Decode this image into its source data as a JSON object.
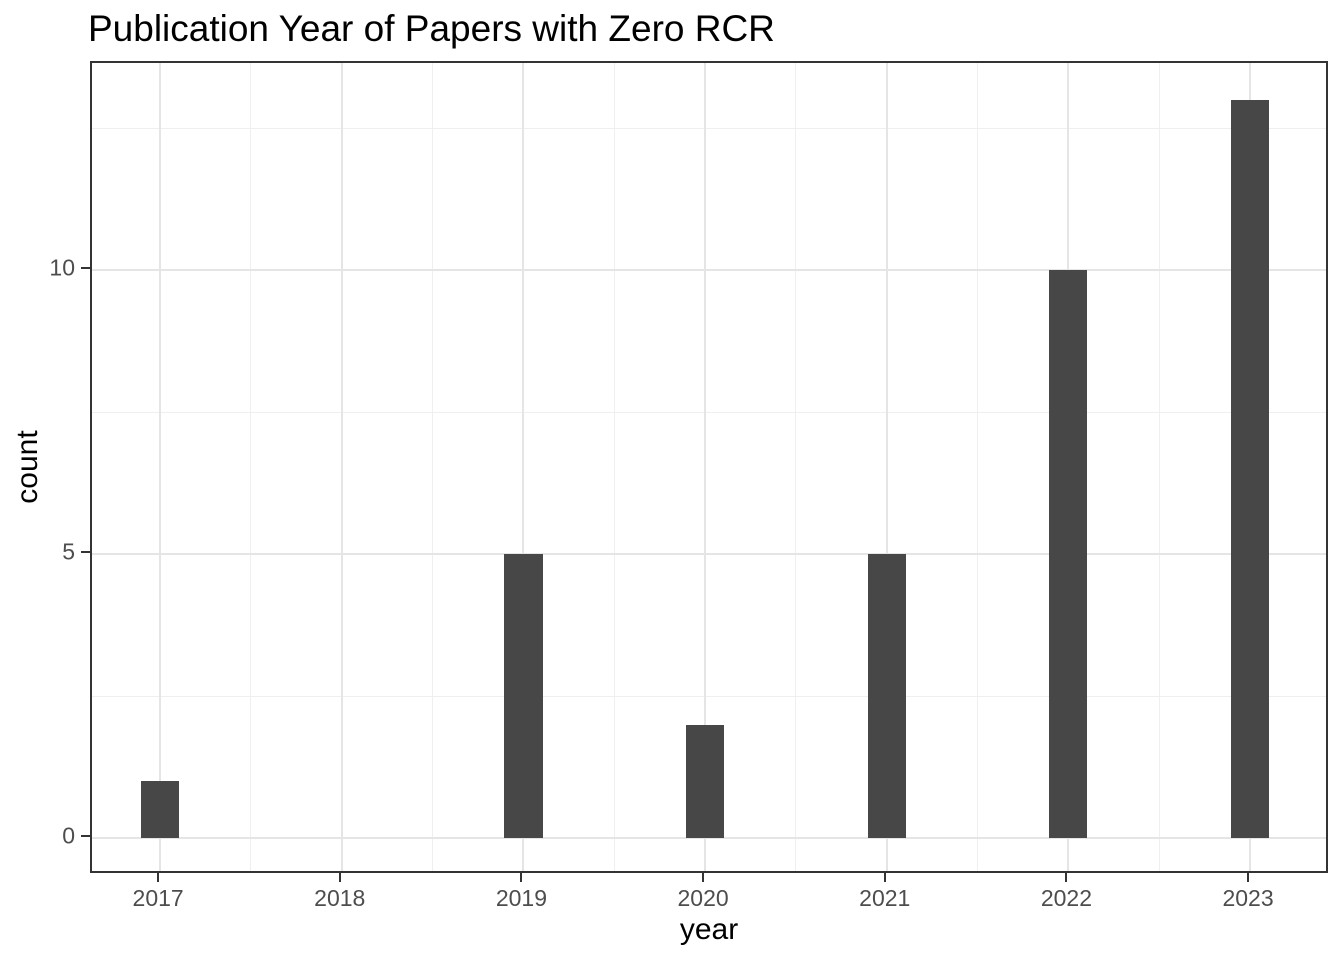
{
  "chart_data": {
    "type": "bar",
    "title": "Publication Year of Papers with Zero RCR",
    "xlabel": "year",
    "ylabel": "count",
    "categories": [
      2017,
      2018,
      2019,
      2020,
      2021,
      2022,
      2023
    ],
    "values": [
      1,
      0,
      5,
      2,
      5,
      10,
      13
    ],
    "x_tick_labels": [
      "2017",
      "2018",
      "2019",
      "2020",
      "2021",
      "2022",
      "2023"
    ],
    "yticks": [
      0,
      5,
      10
    ],
    "ytick_labels": [
      "0",
      "5",
      "10"
    ],
    "y_minor_ticks": [
      2.5,
      7.5,
      12.5
    ],
    "ylim": [
      -0.65,
      13.65
    ],
    "xlim": [
      2016.625,
      2023.44
    ],
    "bar_width": 0.21,
    "grid": true,
    "legend": "none",
    "colors": {
      "bar_fill": "#474747",
      "panel_border": "#333333",
      "grid_major": "#e5e5e5",
      "grid_minor": "#efefef",
      "tick_text": "#4d4d4d",
      "title_text": "#000000",
      "background": "#ffffff"
    }
  }
}
